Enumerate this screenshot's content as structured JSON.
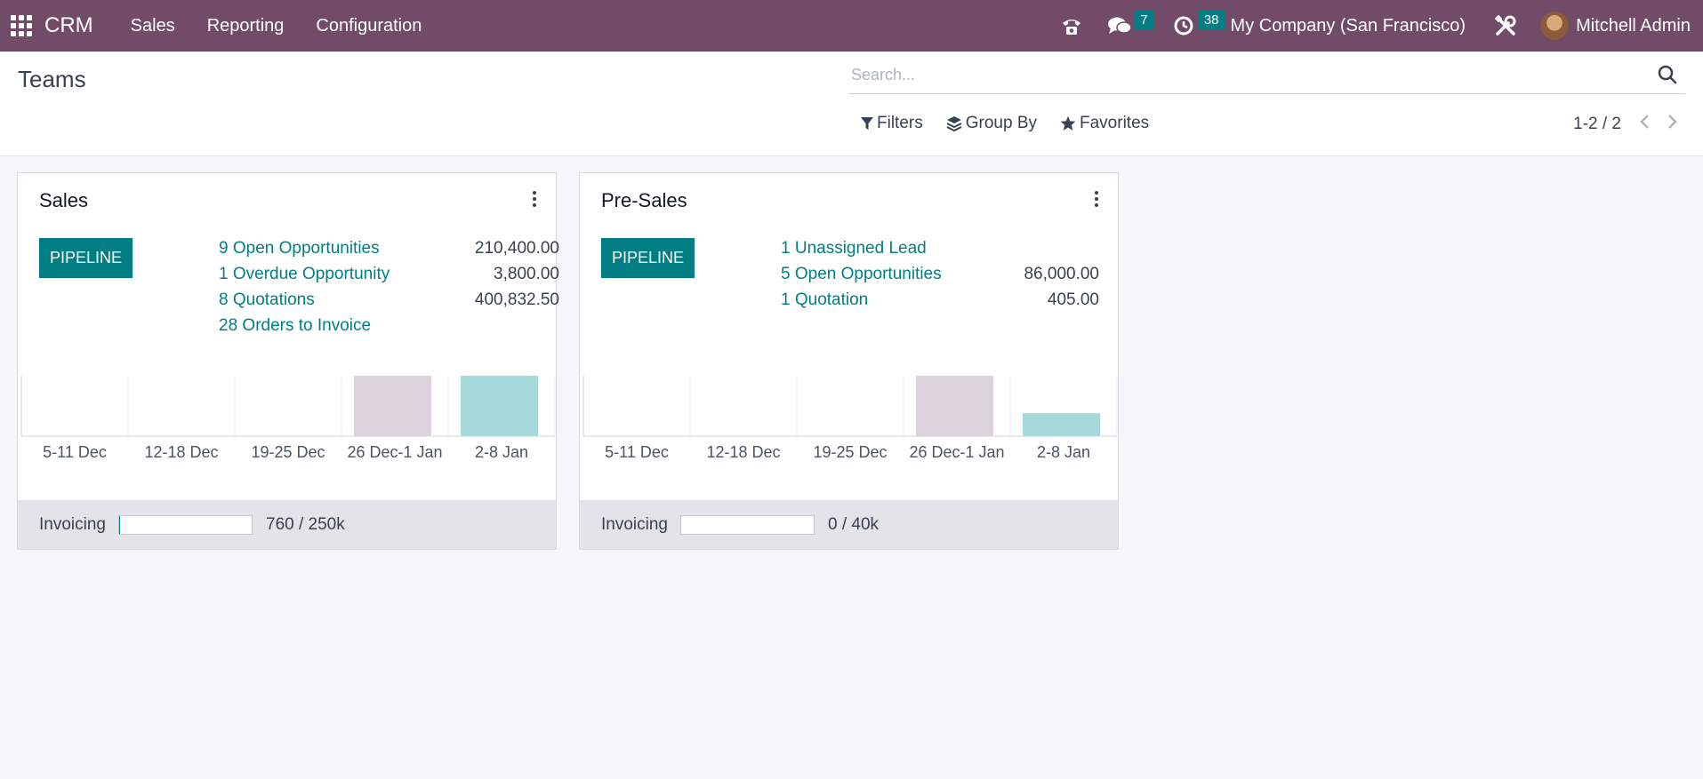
{
  "navbar": {
    "brand": "CRM",
    "menu": [
      "Sales",
      "Reporting",
      "Configuration"
    ],
    "messages_count": "7",
    "activities_count": "38",
    "company": "My Company (San Francisco)",
    "user": "Mitchell Admin",
    "icons": [
      "apps-grid-icon",
      "phone-icon",
      "chat-icon",
      "clock-icon",
      "tools-icon"
    ]
  },
  "control": {
    "title": "Teams",
    "search_placeholder": "Search...",
    "filters": "Filters",
    "group_by": "Group By",
    "favorites": "Favorites",
    "pager": "1-2 / 2"
  },
  "cards": [
    {
      "title": "Sales",
      "pipeline_label": "PIPELINE",
      "stats": [
        {
          "label": "9 Open Opportunities",
          "value": "210,400.00"
        },
        {
          "label": "1 Overdue Opportunity",
          "value": "3,800.00"
        },
        {
          "label": "8 Quotations",
          "value": "400,832.50"
        },
        {
          "label": "28 Orders to Invoice",
          "value": ""
        }
      ],
      "invoicing_label": "Invoicing",
      "invoicing_value": "760 / 250k",
      "invoicing_progress": 0.003
    },
    {
      "title": "Pre-Sales",
      "pipeline_label": "PIPELINE",
      "stats": [
        {
          "label": "1 Unassigned Lead",
          "value": ""
        },
        {
          "label": "5 Open Opportunities",
          "value": "86,000.00"
        },
        {
          "label": "1 Quotation",
          "value": "405.00"
        }
      ],
      "invoicing_label": "Invoicing",
      "invoicing_value": "0 / 40k",
      "invoicing_progress": 0
    }
  ],
  "chart_data": [
    {
      "type": "bar",
      "categories": [
        "5-11 Dec",
        "12-18 Dec",
        "19-25 Dec",
        "26 Dec-1 Jan",
        "2-8 Jan"
      ],
      "values": [
        0,
        0,
        0,
        1,
        1
      ],
      "colors": [
        "#d8cfd8",
        "#d8cfd8",
        "#d8cfd8",
        "#dcd3dc",
        "#a6d9d9"
      ],
      "ylim": [
        0,
        1
      ]
    },
    {
      "type": "bar",
      "categories": [
        "5-11 Dec",
        "12-18 Dec",
        "19-25 Dec",
        "26 Dec-1 Jan",
        "2-8 Jan"
      ],
      "values": [
        0,
        0,
        0,
        1,
        0.38
      ],
      "colors": [
        "#d8cfd8",
        "#d8cfd8",
        "#d8cfd8",
        "#dcd3dc",
        "#a6d9d9"
      ],
      "ylim": [
        0,
        1
      ]
    }
  ]
}
